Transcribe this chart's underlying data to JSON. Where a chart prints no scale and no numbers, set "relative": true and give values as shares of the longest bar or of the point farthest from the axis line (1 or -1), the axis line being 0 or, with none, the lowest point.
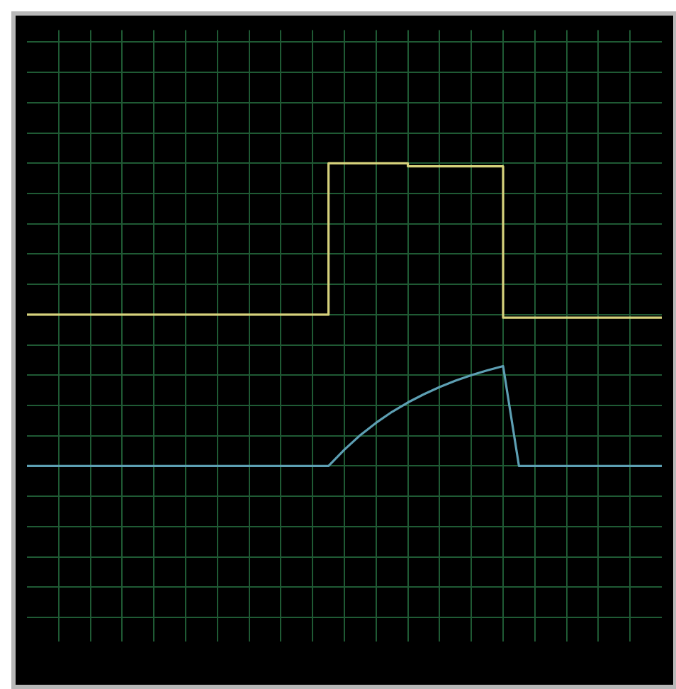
{
  "chart_data": {
    "type": "line",
    "relative": true,
    "grid": true,
    "legend": false,
    "categories": [
      null,
      null,
      null,
      null,
      null,
      null,
      null,
      null,
      null,
      null,
      null,
      null,
      null,
      null,
      null,
      null,
      null,
      null,
      null,
      null,
      null,
      null,
      null,
      null,
      null,
      null,
      null,
      null,
      null,
      null,
      null,
      null,
      null,
      null,
      null,
      null,
      null,
      null,
      null,
      null,
      null
    ],
    "series": [
      {
        "type": "step",
        "color": "#d6d27c",
        "values": [
          0.5,
          0.5,
          0.5,
          0.5,
          0.5,
          0.5,
          0.5,
          0.5,
          0.5,
          0.5,
          0.5,
          0.5,
          0.5,
          0.5,
          0.5,
          0.5,
          0.5,
          0.5,
          0.5,
          0.5,
          1,
          1,
          1,
          1,
          1,
          0.99,
          0.99,
          0.99,
          0.99,
          0.99,
          0.99,
          0.49,
          0.49,
          0.49,
          0.49,
          0.49,
          0.49,
          0.49,
          0.49,
          0.49,
          0.49
        ]
      },
      {
        "type": "line",
        "color": "#5d9fb3",
        "values": [
          0,
          0,
          0,
          0,
          0,
          0,
          0,
          0,
          0,
          0,
          0,
          0,
          0,
          0,
          0,
          0,
          0,
          0,
          0,
          0,
          0.054,
          0.102,
          0.143,
          0.179,
          0.21,
          0.237,
          0.261,
          0.282,
          0.3,
          0.316,
          0.33,
          0,
          0,
          0,
          0,
          0,
          0,
          0,
          0,
          0,
          0
        ]
      }
    ]
  }
}
